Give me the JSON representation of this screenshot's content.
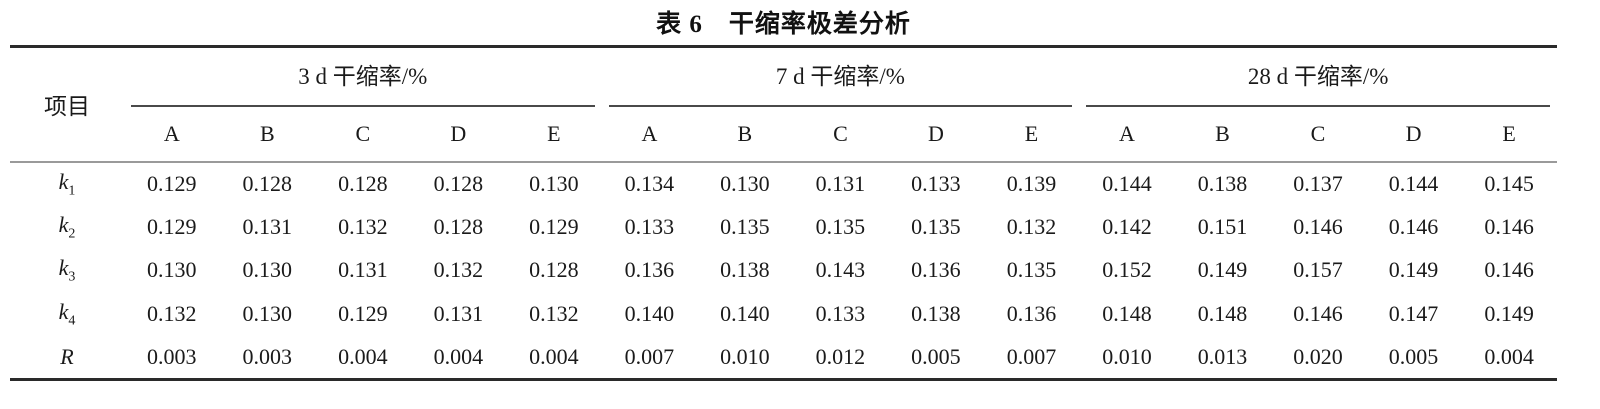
{
  "title": "表 6　干缩率极差分析",
  "table": {
    "item_header": "项目",
    "groups": [
      {
        "label": "3 d 干缩率/%",
        "subcols": [
          "A",
          "B",
          "C",
          "D",
          "E"
        ]
      },
      {
        "label": "7 d 干缩率/%",
        "subcols": [
          "A",
          "B",
          "C",
          "D",
          "E"
        ]
      },
      {
        "label": "28 d 干缩率/%",
        "subcols": [
          "A",
          "B",
          "C",
          "D",
          "E"
        ]
      }
    ],
    "rows": [
      {
        "base": "k",
        "sub": "1",
        "values": [
          "0.129",
          "0.128",
          "0.128",
          "0.128",
          "0.130",
          "0.134",
          "0.130",
          "0.131",
          "0.133",
          "0.139",
          "0.144",
          "0.138",
          "0.137",
          "0.144",
          "0.145"
        ]
      },
      {
        "base": "k",
        "sub": "2",
        "values": [
          "0.129",
          "0.131",
          "0.132",
          "0.128",
          "0.129",
          "0.133",
          "0.135",
          "0.135",
          "0.135",
          "0.132",
          "0.142",
          "0.151",
          "0.146",
          "0.146",
          "0.146"
        ]
      },
      {
        "base": "k",
        "sub": "3",
        "values": [
          "0.130",
          "0.130",
          "0.131",
          "0.132",
          "0.128",
          "0.136",
          "0.138",
          "0.143",
          "0.136",
          "0.135",
          "0.152",
          "0.149",
          "0.157",
          "0.149",
          "0.146"
        ]
      },
      {
        "base": "k",
        "sub": "4",
        "values": [
          "0.132",
          "0.130",
          "0.129",
          "0.131",
          "0.132",
          "0.140",
          "0.140",
          "0.133",
          "0.138",
          "0.136",
          "0.148",
          "0.148",
          "0.146",
          "0.147",
          "0.149"
        ]
      },
      {
        "base": "R",
        "sub": "",
        "values": [
          "0.003",
          "0.003",
          "0.004",
          "0.004",
          "0.004",
          "0.007",
          "0.010",
          "0.012",
          "0.005",
          "0.007",
          "0.010",
          "0.013",
          "0.020",
          "0.005",
          "0.004"
        ]
      }
    ],
    "colors": {
      "thick_rule": "#2a2a2a",
      "group_rule": "#4a4a4a",
      "thin_rule": "#9a9a9a",
      "text": "#1a1a1a"
    }
  }
}
